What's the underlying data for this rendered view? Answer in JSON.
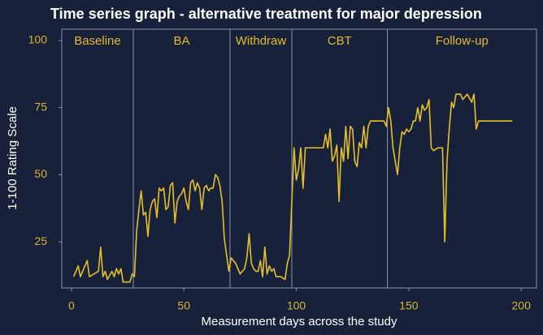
{
  "chart_data": {
    "type": "line",
    "title": "Time series graph - alternative treatment for major depression",
    "x_label": "Measurement days across the study",
    "y_label": "1-100 Rating Scale",
    "color": "#e6bf2a",
    "xlim": [
      -4.3,
      206.8
    ],
    "ylim": [
      7.8,
      104.2
    ],
    "xticks": [
      0,
      50,
      100,
      150,
      200
    ],
    "yticks": [
      25,
      50,
      75,
      100
    ],
    "phases": [
      "Baseline",
      "BA",
      "Withdraw",
      "CBT",
      "Follow-up"
    ],
    "phase_boundaries": [
      27.5,
      70.5,
      98,
      140.5
    ],
    "x": [
      1,
      3,
      4,
      6,
      7,
      8,
      10,
      12,
      13,
      14,
      15,
      16,
      18,
      19,
      20,
      21,
      22,
      23,
      25,
      26,
      27,
      28,
      29,
      30,
      31,
      32,
      33,
      34,
      35,
      36,
      37,
      38,
      39,
      40,
      41,
      42,
      43,
      44,
      45,
      46,
      47,
      48,
      49,
      50,
      51,
      52,
      53,
      54,
      55,
      56,
      57,
      58,
      59,
      60,
      61,
      62,
      63,
      64,
      65,
      66,
      67,
      68,
      70,
      71,
      72,
      73,
      74,
      75,
      77,
      78,
      79,
      80,
      81,
      82,
      83,
      84,
      85,
      86,
      87,
      88,
      89,
      90,
      91,
      93,
      95,
      96,
      97,
      98,
      99,
      100,
      101,
      102,
      103,
      104,
      106,
      108,
      110,
      112,
      113,
      114,
      115,
      116,
      117,
      118,
      119,
      120,
      121,
      122,
      123,
      124,
      125,
      126,
      127,
      128,
      129,
      130,
      131,
      132,
      133,
      135,
      137,
      139,
      140,
      141,
      142,
      143,
      144,
      145,
      146,
      147,
      148,
      149,
      150,
      151,
      152,
      153,
      154,
      155,
      156,
      157,
      158,
      159,
      160,
      161,
      163,
      165,
      166,
      167,
      168,
      169,
      170,
      171,
      173,
      174,
      175,
      176,
      178,
      179,
      180,
      181,
      184,
      190,
      196
    ],
    "values": [
      12,
      16,
      12,
      16,
      18,
      12,
      13,
      14,
      23,
      12,
      14,
      11,
      14,
      12,
      15,
      13,
      15,
      10,
      10,
      10,
      13,
      12,
      29,
      37,
      44,
      35,
      36,
      27,
      37,
      40,
      41,
      34,
      45,
      44,
      45,
      37,
      38,
      46,
      47,
      32,
      40,
      42,
      43,
      45,
      40,
      37,
      47,
      48,
      44,
      47,
      45,
      37,
      45,
      46,
      44,
      45,
      45,
      50,
      49,
      46,
      40,
      26,
      14,
      19,
      18,
      17,
      15,
      13,
      15,
      19,
      28,
      17,
      15,
      14,
      14,
      18,
      12,
      23,
      13,
      16,
      14,
      15,
      12,
      12,
      11,
      17,
      20,
      40,
      60,
      48,
      52,
      60,
      45,
      60,
      60,
      60,
      60,
      60,
      65,
      60,
      67,
      55,
      57,
      61,
      40,
      60,
      55,
      68,
      56,
      68,
      67,
      55,
      53,
      62,
      60,
      68,
      60,
      68,
      70,
      70,
      70,
      70,
      68,
      75,
      70,
      60,
      55,
      50,
      60,
      66,
      65,
      67,
      66,
      67,
      70,
      70,
      75,
      70,
      76,
      74,
      75,
      78,
      60,
      59,
      60,
      60,
      25,
      55,
      67,
      77,
      75,
      80,
      80,
      78,
      79,
      80,
      77,
      80,
      67,
      70,
      70,
      70,
      70
    ]
  }
}
